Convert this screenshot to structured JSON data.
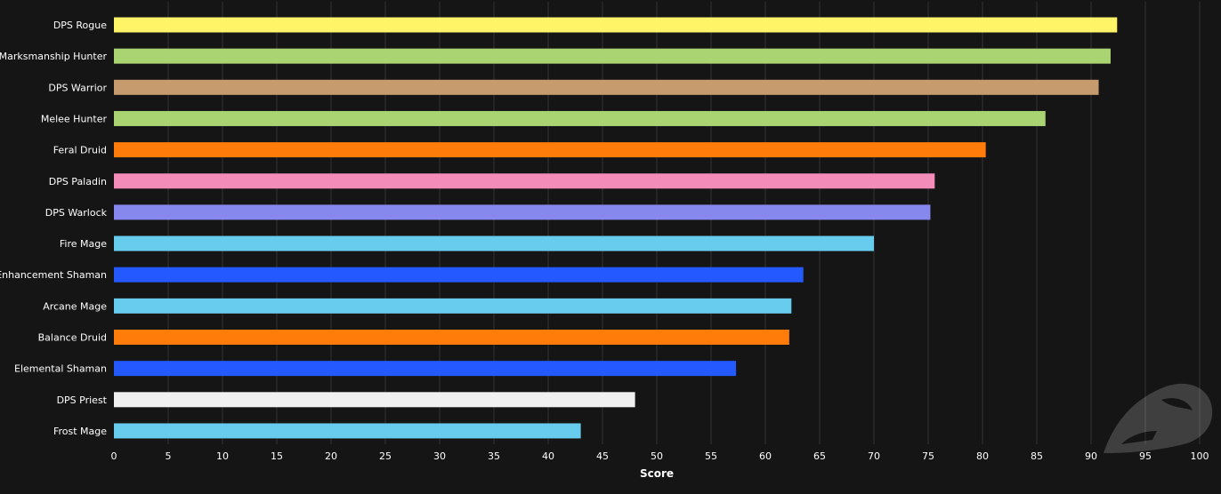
{
  "chart_data": {
    "type": "bar",
    "orientation": "horizontal",
    "title": "",
    "xlabel": "Score",
    "ylabel": "",
    "xlim": [
      0,
      100
    ],
    "xticks": [
      0,
      5,
      10,
      15,
      20,
      25,
      30,
      35,
      40,
      45,
      50,
      55,
      60,
      65,
      70,
      75,
      80,
      85,
      90,
      95,
      100
    ],
    "grid": true,
    "categories": [
      "DPS Rogue",
      "Marksmanship Hunter",
      "DPS Warrior",
      "Melee Hunter",
      "Feral Druid",
      "DPS Paladin",
      "DPS Warlock",
      "Fire Mage",
      "Enhancement Shaman",
      "Arcane Mage",
      "Balance Druid",
      "Elemental Shaman",
      "DPS Priest",
      "Frost Mage"
    ],
    "values": [
      92.4,
      91.8,
      90.7,
      85.8,
      80.3,
      75.6,
      75.2,
      70.0,
      63.5,
      62.4,
      62.2,
      57.3,
      48.0,
      43.0
    ],
    "colors": [
      "#FFF468",
      "#AAD372",
      "#C69B6D",
      "#AAD372",
      "#FF7C0A",
      "#F48CBA",
      "#8788EE",
      "#68CCEF",
      "#2359FF",
      "#68CCEF",
      "#FF7C0A",
      "#2359FF",
      "#F0F0F0",
      "#68CCEF"
    ]
  }
}
